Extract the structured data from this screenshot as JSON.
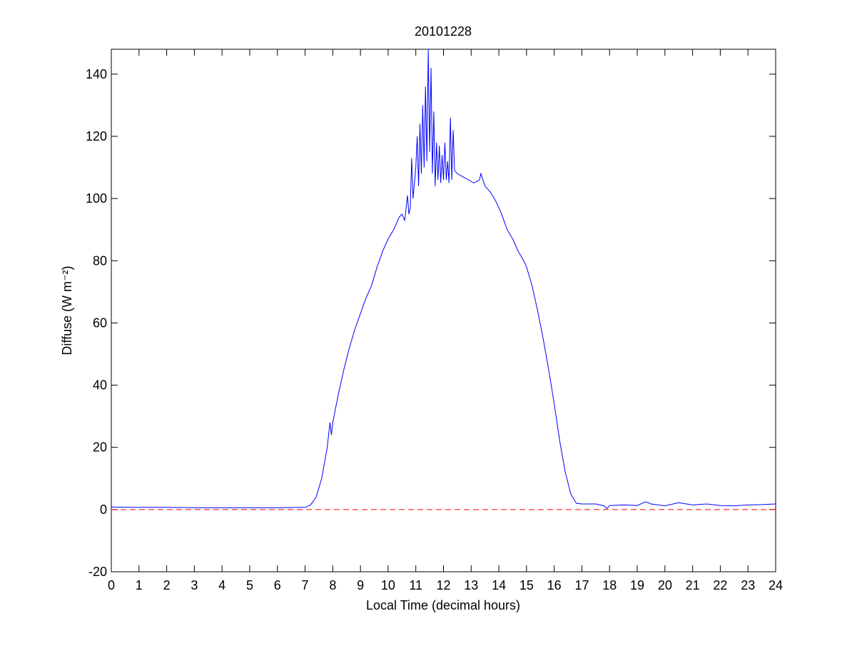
{
  "chart_data": {
    "type": "line",
    "title": "20101228",
    "xlabel": "Local Time (decimal hours)",
    "ylabel": "Diffuse (W m⁻²)",
    "x": [
      0,
      1,
      2,
      3,
      4,
      5,
      6,
      7,
      7.2,
      7.4,
      7.6,
      7.8,
      7.9,
      7.95,
      8.0,
      8.2,
      8.4,
      8.6,
      8.8,
      9.0,
      9.2,
      9.4,
      9.6,
      9.8,
      10.0,
      10.2,
      10.4,
      10.5,
      10.6,
      10.7,
      10.75,
      10.8,
      10.85,
      10.9,
      11.0,
      11.05,
      11.1,
      11.15,
      11.2,
      11.25,
      11.3,
      11.35,
      11.4,
      11.45,
      11.5,
      11.55,
      11.6,
      11.65,
      11.7,
      11.75,
      11.8,
      11.85,
      11.9,
      11.95,
      12.0,
      12.05,
      12.1,
      12.15,
      12.2,
      12.25,
      12.3,
      12.35,
      12.4,
      12.5,
      12.7,
      12.9,
      13.1,
      13.3,
      13.35,
      13.5,
      13.7,
      13.9,
      14.1,
      14.3,
      14.5,
      14.7,
      14.9,
      15.0,
      15.2,
      15.4,
      15.6,
      15.8,
      16.0,
      16.2,
      16.4,
      16.6,
      16.8,
      17.0,
      17.5,
      17.8,
      17.9,
      18.0,
      18.5,
      19.0,
      19.3,
      19.5,
      20.0,
      20.5,
      21.0,
      21.5,
      22.0,
      22.5,
      23.0,
      23.5,
      24.0
    ],
    "series": [
      {
        "name": "Diffuse",
        "color": "#0000ff",
        "values": [
          0.8,
          0.7,
          0.7,
          0.6,
          0.6,
          0.6,
          0.6,
          0.7,
          1.5,
          4,
          10,
          20,
          28,
          24,
          28,
          37,
          45,
          52,
          58,
          63,
          68,
          72,
          78,
          83,
          87,
          90,
          94,
          95,
          93,
          101,
          95,
          97,
          113,
          100,
          110,
          120,
          104,
          124,
          108,
          130,
          110,
          136,
          112,
          148,
          115,
          142,
          108,
          128,
          104,
          118,
          106,
          117,
          105,
          114,
          106,
          118,
          106,
          112,
          105,
          126,
          106,
          122,
          109,
          108,
          107,
          106,
          105,
          106,
          108,
          104,
          102,
          99,
          95,
          90,
          87,
          83,
          80,
          78,
          72,
          64,
          55,
          45,
          34,
          22,
          12,
          5,
          2,
          1.8,
          1.8,
          1.2,
          0.3,
          1.3,
          1.5,
          1.3,
          2.5,
          1.8,
          1.2,
          2.2,
          1.5,
          1.8,
          1.3,
          1.2,
          1.5,
          1.6,
          1.8
        ]
      }
    ],
    "reference_line": {
      "value": 0,
      "color": "#ff0000"
    },
    "xlim": [
      0,
      24
    ],
    "xticks": [
      0,
      1,
      2,
      3,
      4,
      5,
      6,
      7,
      8,
      9,
      10,
      11,
      12,
      13,
      14,
      15,
      16,
      17,
      18,
      19,
      20,
      21,
      22,
      23,
      24
    ],
    "ylim": [
      -20,
      148
    ],
    "yticks": [
      -20,
      0,
      20,
      40,
      60,
      80,
      100,
      120,
      140
    ]
  }
}
